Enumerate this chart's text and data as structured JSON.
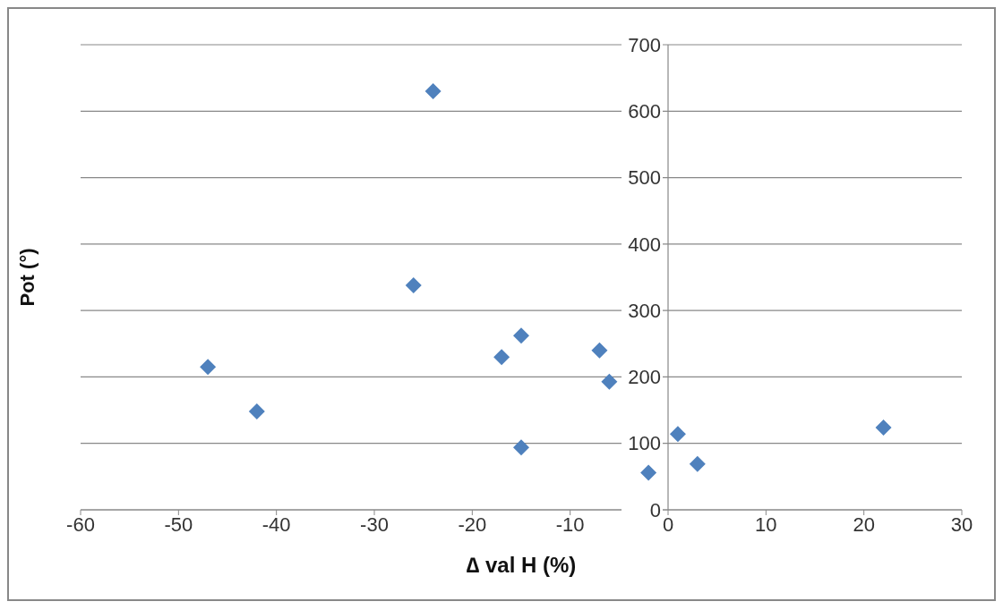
{
  "chart_data": {
    "type": "scatter",
    "xlabel": "∆ val H (%)",
    "ylabel": "Pot (°)",
    "x": [
      -24,
      -26,
      -47,
      -42,
      -17,
      -15,
      -15,
      -7,
      -6,
      -2,
      1,
      3,
      22
    ],
    "series": [
      {
        "color": "#4f81bd",
        "values": [
          630,
          338,
          215,
          148,
          230,
          262,
          94,
          240,
          193,
          56,
          114,
          69,
          124
        ]
      }
    ],
    "xlim": [
      -60,
      30
    ],
    "xticks": [
      -60,
      -50,
      -40,
      -30,
      -20,
      -10,
      0,
      10,
      20,
      30
    ],
    "ylim": [
      0,
      700
    ],
    "yticks": [
      0,
      100,
      200,
      300,
      400,
      500,
      600,
      700
    ],
    "grid": "y",
    "marker": "diamond",
    "legend": false
  }
}
